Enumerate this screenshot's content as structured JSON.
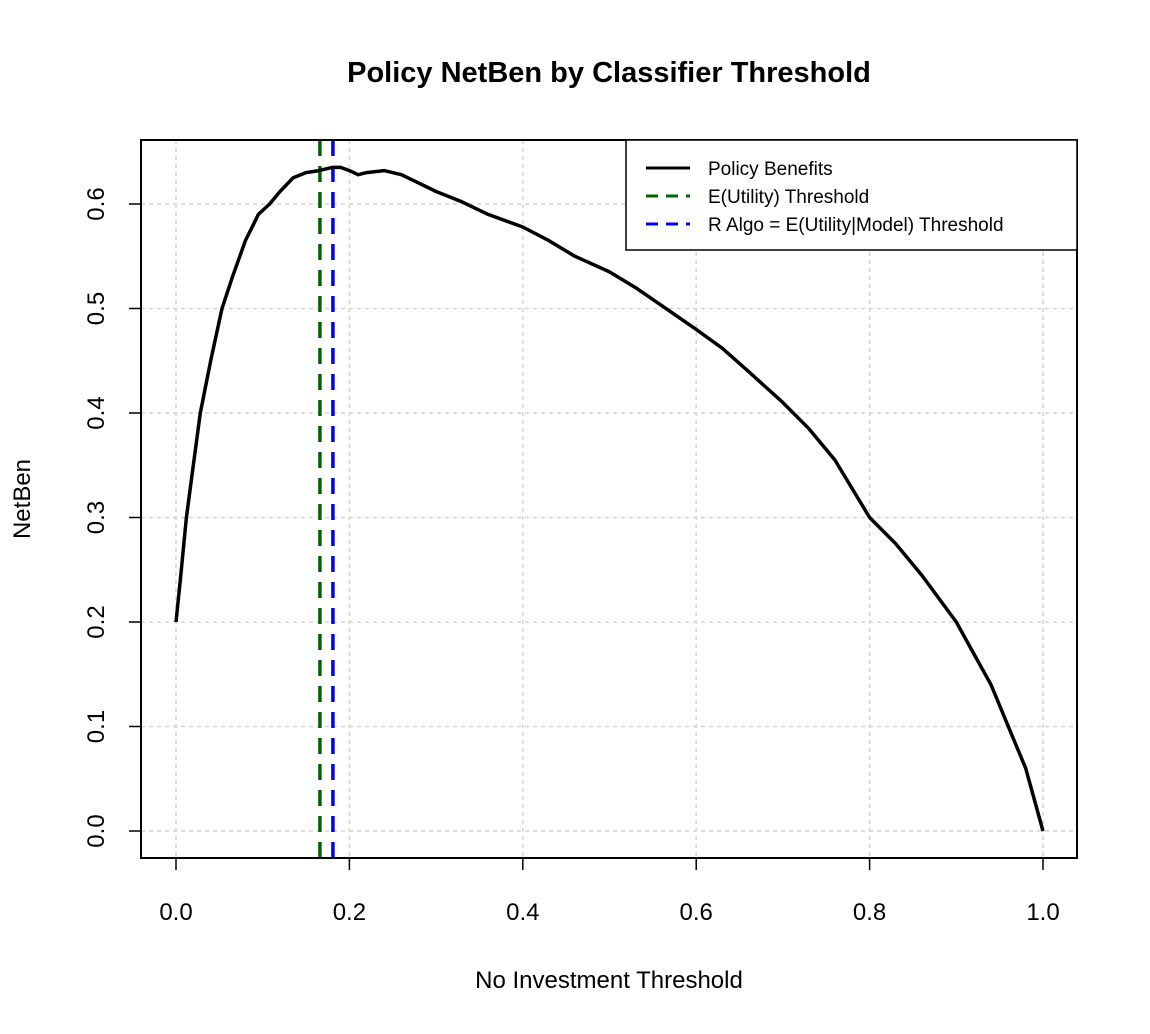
{
  "chart_data": {
    "type": "line",
    "title": "Policy NetBen by Classifier Threshold",
    "xlabel": "No Investment Threshold",
    "ylabel": "NetBen",
    "xlim": [
      -0.04,
      1.04
    ],
    "ylim": [
      -0.025,
      0.66
    ],
    "x_ticks": [
      0.0,
      0.2,
      0.4,
      0.6,
      0.8,
      1.0
    ],
    "x_tick_labels": [
      "0.0",
      "0.2",
      "0.4",
      "0.6",
      "0.8",
      "1.0"
    ],
    "y_ticks": [
      0.0,
      0.1,
      0.2,
      0.3,
      0.4,
      0.5,
      0.6
    ],
    "y_tick_labels": [
      "0.0",
      "0.1",
      "0.2",
      "0.3",
      "0.4",
      "0.5",
      "0.6"
    ],
    "grid": true,
    "legend_position": "top-right",
    "series": [
      {
        "name": "Policy Benefits",
        "color": "#000000",
        "style": "solid",
        "x": [
          0.0,
          0.005,
          0.012,
          0.02,
          0.028,
          0.04,
          0.053,
          0.065,
          0.08,
          0.095,
          0.108,
          0.12,
          0.135,
          0.15,
          0.165,
          0.18,
          0.19,
          0.2,
          0.21,
          0.22,
          0.24,
          0.26,
          0.28,
          0.3,
          0.33,
          0.36,
          0.4,
          0.43,
          0.46,
          0.5,
          0.53,
          0.56,
          0.6,
          0.63,
          0.66,
          0.7,
          0.73,
          0.76,
          0.8,
          0.83,
          0.86,
          0.9,
          0.92,
          0.94,
          0.96,
          0.98,
          1.0
        ],
        "y": [
          0.2,
          0.24,
          0.3,
          0.35,
          0.4,
          0.45,
          0.5,
          0.53,
          0.565,
          0.59,
          0.6,
          0.612,
          0.625,
          0.63,
          0.632,
          0.635,
          0.635,
          0.632,
          0.628,
          0.63,
          0.632,
          0.628,
          0.62,
          0.612,
          0.602,
          0.59,
          0.578,
          0.565,
          0.55,
          0.535,
          0.52,
          0.503,
          0.48,
          0.462,
          0.44,
          0.41,
          0.385,
          0.355,
          0.3,
          0.275,
          0.245,
          0.2,
          0.17,
          0.14,
          0.1,
          0.06,
          0.0
        ]
      },
      {
        "name": "E(Utility) Threshold",
        "color": "#006400",
        "style": "dashed",
        "x_value": 0.166
      },
      {
        "name": "R Algo = E(Utility|Model) Threshold",
        "color": "#0000ff",
        "style": "dashed",
        "x_value": 0.181
      }
    ]
  }
}
